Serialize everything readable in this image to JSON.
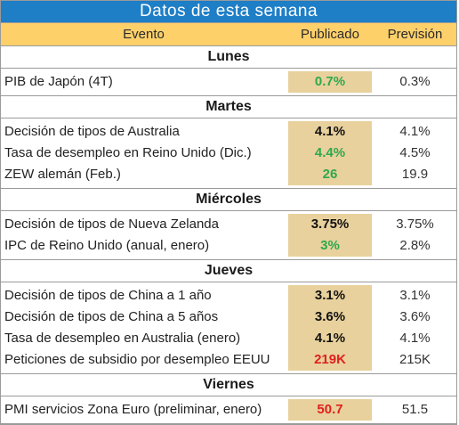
{
  "title": "Datos de esta semana",
  "columns": {
    "event": "Evento",
    "published": "Publicado",
    "forecast": "Previsión"
  },
  "days": [
    {
      "label": "Lunes",
      "rows": [
        {
          "event": "PIB de Japón (4T)",
          "published": "0.7%",
          "forecast": "0.3%",
          "color": "#2fa84f"
        }
      ]
    },
    {
      "label": "Martes",
      "rows": [
        {
          "event": "Decisión de tipos de Australia",
          "published": "4.1%",
          "forecast": "4.1%",
          "color": "#111111"
        },
        {
          "event": "Tasa de desempleo en Reino Unido (Dic.)",
          "published": "4.4%",
          "forecast": "4.5%",
          "color": "#2fa84f"
        },
        {
          "event": "ZEW alemán (Feb.)",
          "published": "26",
          "forecast": "19.9",
          "color": "#2fa84f"
        }
      ]
    },
    {
      "label": "Miércoles",
      "rows": [
        {
          "event": "Decisión de tipos de Nueva Zelanda",
          "published": "3.75%",
          "forecast": "3.75%",
          "color": "#111111"
        },
        {
          "event": "IPC de Reino Unido (anual, enero)",
          "published": "3%",
          "forecast": "2.8%",
          "color": "#2fa84f"
        }
      ]
    },
    {
      "label": "Jueves",
      "rows": [
        {
          "event": "Decisión de tipos de China a 1 año",
          "published": "3.1%",
          "forecast": "3.1%",
          "color": "#111111"
        },
        {
          "event": "Decisión de tipos de China a 5 años",
          "published": "3.6%",
          "forecast": "3.6%",
          "color": "#111111"
        },
        {
          "event": "Tasa de desempleo en Australia (enero)",
          "published": "4.1%",
          "forecast": "4.1%",
          "color": "#111111"
        },
        {
          "event": "Peticiones de subsidio por desempleo EEUU",
          "published": "219K",
          "forecast": "215K",
          "color": "#e0201e"
        }
      ]
    },
    {
      "label": "Viernes",
      "rows": [
        {
          "event": "PMI servicios Zona Euro (preliminar, enero)",
          "published": "50.7",
          "forecast": "51.5",
          "color": "#e0201e"
        }
      ]
    }
  ],
  "colors": {
    "title_bg": "#1e7ec6",
    "header_bg": "#fdd06a",
    "published_bg": "#e8d19c",
    "up": "#2fa84f",
    "down": "#e0201e"
  }
}
